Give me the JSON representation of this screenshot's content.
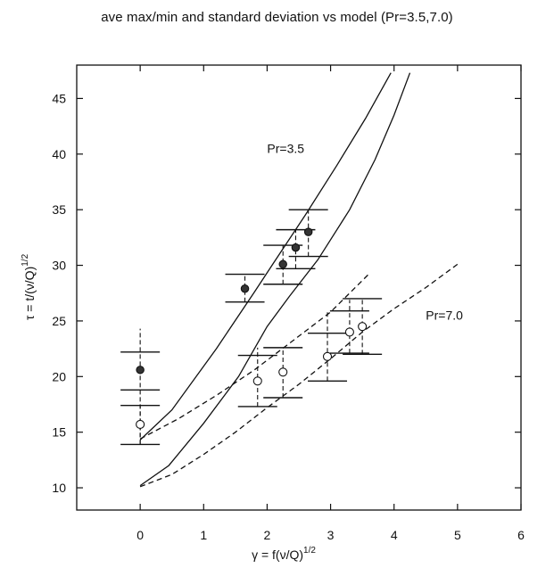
{
  "chart_data": {
    "type": "scatter",
    "title": "ave max/min and standard deviation  vs  model (Pr=3.5,7.0)",
    "xlabel": "γ = f(ν/Q)",
    "xlabel_sup": "1/2",
    "ylabel": "τ = t/(ν/Q)",
    "ylabel_sup": "1/2",
    "xlim": [
      -1,
      6
    ],
    "ylim": [
      8,
      48
    ],
    "xticks": [
      0,
      1,
      2,
      3,
      4,
      5,
      6
    ],
    "xtick_labels": [
      "0",
      "1",
      "2",
      "3",
      "4",
      "5",
      "6"
    ],
    "yticks": [
      10,
      15,
      20,
      25,
      30,
      35,
      40,
      45
    ],
    "ytick_labels": [
      "10",
      "15",
      "20",
      "25",
      "30",
      "35",
      "40",
      "45"
    ],
    "grid": false,
    "series": [
      {
        "name": "Pr=3.5",
        "marker": "filled-circle",
        "points": [
          {
            "x": 0.0,
            "y": 20.6,
            "ylow": 13.9,
            "yhigh": 24.3,
            "hbars": [
              22.2,
              18.8,
              13.9
            ]
          },
          {
            "x": 1.65,
            "y": 27.9,
            "ylow": 26.7,
            "yhigh": 29.2,
            "hbars": [
              29.2,
              26.7
            ]
          },
          {
            "x": 2.25,
            "y": 30.1,
            "ylow": 28.3,
            "yhigh": 31.8,
            "hbars": [
              31.8,
              28.3
            ]
          },
          {
            "x": 2.45,
            "y": 31.6,
            "ylow": 29.7,
            "yhigh": 33.2,
            "hbars": [
              33.2,
              29.7
            ]
          },
          {
            "x": 2.65,
            "y": 33.0,
            "ylow": 30.8,
            "yhigh": 35.0,
            "hbars": [
              35.0,
              30.8
            ]
          }
        ]
      },
      {
        "name": "Pr=7.0",
        "marker": "open-circle",
        "points": [
          {
            "x": 0.0,
            "y": 15.7,
            "ylow": 13.9,
            "yhigh": 17.4,
            "hbars": [
              17.4
            ]
          },
          {
            "x": 1.85,
            "y": 19.6,
            "ylow": 17.3,
            "yhigh": 22.6,
            "hbars": [
              21.9,
              17.3
            ]
          },
          {
            "x": 2.25,
            "y": 20.4,
            "ylow": 18.1,
            "yhigh": 22.6,
            "hbars": [
              22.6,
              18.1
            ]
          },
          {
            "x": 2.95,
            "y": 21.8,
            "ylow": 19.6,
            "yhigh": 26.0,
            "hbars": [
              23.9,
              19.6
            ]
          },
          {
            "x": 3.3,
            "y": 24.0,
            "ylow": 22.1,
            "yhigh": 26.9,
            "hbars": [
              25.9,
              22.1
            ]
          },
          {
            "x": 3.5,
            "y": 24.5,
            "ylow": 22.0,
            "yhigh": 27.0,
            "hbars": [
              27.0,
              22.0
            ]
          }
        ]
      }
    ],
    "model_curves": [
      {
        "label": "Pr=3.5",
        "style": "solid",
        "points": [
          [
            0,
            14.3
          ],
          [
            0.5,
            17.0
          ],
          [
            1.2,
            22.5
          ],
          [
            1.8,
            27.6
          ],
          [
            2.1,
            30.2
          ],
          [
            2.6,
            34.5
          ],
          [
            3.1,
            39.0
          ],
          [
            3.55,
            43.2
          ],
          [
            3.95,
            47.3
          ]
        ]
      },
      {
        "label": "Pr=3.5",
        "style": "solid",
        "points": [
          [
            0,
            10.2
          ],
          [
            0.45,
            12.0
          ],
          [
            1.0,
            15.8
          ],
          [
            1.55,
            20.0
          ],
          [
            2.0,
            24.5
          ],
          [
            2.35,
            27.2
          ],
          [
            2.8,
            30.5
          ],
          [
            3.3,
            35.0
          ],
          [
            3.7,
            39.5
          ],
          [
            4.0,
            43.5
          ],
          [
            4.25,
            47.3
          ]
        ]
      },
      {
        "label": "Pr=7.0",
        "style": "dashed",
        "points": [
          [
            0,
            14.4
          ],
          [
            0.6,
            16.2
          ],
          [
            1.2,
            18.3
          ],
          [
            1.8,
            20.6
          ],
          [
            2.4,
            23.2
          ],
          [
            3.0,
            25.8
          ],
          [
            3.6,
            29.2
          ]
        ]
      },
      {
        "label": "Pr=7.0",
        "style": "dashed",
        "points": [
          [
            0,
            10.1
          ],
          [
            0.5,
            11.2
          ],
          [
            1.0,
            13.0
          ],
          [
            1.5,
            15.0
          ],
          [
            2.0,
            17.2
          ],
          [
            2.5,
            19.3
          ],
          [
            3.0,
            21.6
          ],
          [
            3.5,
            24.0
          ],
          [
            4.0,
            26.1
          ],
          [
            4.5,
            28.0
          ],
          [
            5.0,
            30.1
          ]
        ]
      }
    ],
    "annotations": [
      {
        "text": "Pr=3.5",
        "x": 2.0,
        "y": 40.1
      },
      {
        "text": "Pr=7.0",
        "x": 4.5,
        "y": 25.1
      }
    ]
  }
}
